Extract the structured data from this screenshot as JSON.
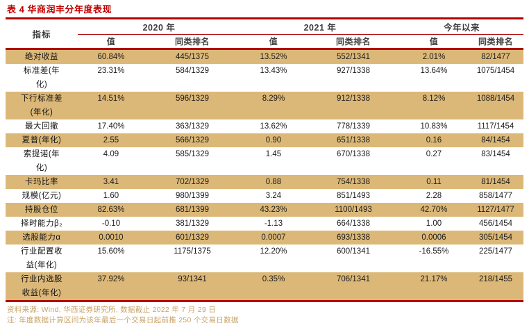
{
  "title": "表 4 华商润丰分年度表现",
  "table": {
    "indicator_header": "指标",
    "year_headers": [
      "2020 年",
      "2021 年",
      "今年以来"
    ],
    "sub_headers": {
      "value": "值",
      "rank": "同类排名"
    },
    "rows": [
      {
        "label": "绝对收益",
        "cells": [
          "60.84%",
          "445/1375",
          "13.52%",
          "552/1341",
          "2.01%",
          "82/1477"
        ]
      },
      {
        "label": "标准差(年化)",
        "cells": [
          "23.31%",
          "584/1329",
          "13.43%",
          "927/1338",
          "13.64%",
          "1075/1454"
        ]
      },
      {
        "label": "下行标准差(年化)",
        "cells": [
          "14.51%",
          "596/1329",
          "8.29%",
          "912/1338",
          "8.12%",
          "1088/1454"
        ]
      },
      {
        "label": "最大回撤",
        "cells": [
          "17.40%",
          "363/1329",
          "13.62%",
          "778/1339",
          "10.83%",
          "1117/1454"
        ]
      },
      {
        "label": "夏普(年化)",
        "cells": [
          "2.55",
          "566/1329",
          "0.90",
          "651/1338",
          "0.16",
          "84/1454"
        ]
      },
      {
        "label": "索提诺(年化)",
        "cells": [
          "4.09",
          "585/1329",
          "1.45",
          "670/1338",
          "0.27",
          "83/1454"
        ]
      },
      {
        "label": "卡玛比率",
        "cells": [
          "3.41",
          "702/1329",
          "0.88",
          "754/1338",
          "0.11",
          "81/1454"
        ]
      },
      {
        "label": "规模(亿元)",
        "cells": [
          "1.60",
          "980/1399",
          "3.24",
          "851/1493",
          "2.28",
          "858/1477"
        ]
      },
      {
        "label": "持股仓位",
        "cells": [
          "82.63%",
          "681/1399",
          "43.23%",
          "1100/1493",
          "42.70%",
          "1127/1477"
        ]
      },
      {
        "label": "择时能力β₂",
        "cells": [
          "-0.10",
          "381/1329",
          "-1.13",
          "664/1338",
          "1.00",
          "456/1454"
        ]
      },
      {
        "label": "选股能力α",
        "cells": [
          "0.0010",
          "601/1329",
          "0.0007",
          "693/1338",
          "0.0006",
          "305/1454"
        ]
      },
      {
        "label": "行业配置收益(年化)",
        "cells": [
          "15.60%",
          "1175/1375",
          "12.20%",
          "600/1341",
          "-16.55%",
          "225/1477"
        ]
      },
      {
        "label": "行业内选股收益(年化)",
        "cells": [
          "37.92%",
          "93/1341",
          "0.35%",
          "706/1341",
          "21.17%",
          "218/1455"
        ]
      }
    ]
  },
  "footer": {
    "source": "资料来源: Wind, 华西证券研究所, 数据截止 2022 年 7 月 29 日",
    "note": "注: 年度数据计算区间为该年最后一个交易日起前推 250 个交易日数据"
  },
  "colors": {
    "line_red": "#b20000",
    "title_red": "#c00000",
    "row_tan": "#dcb878",
    "footer_gold": "#c8a268"
  }
}
